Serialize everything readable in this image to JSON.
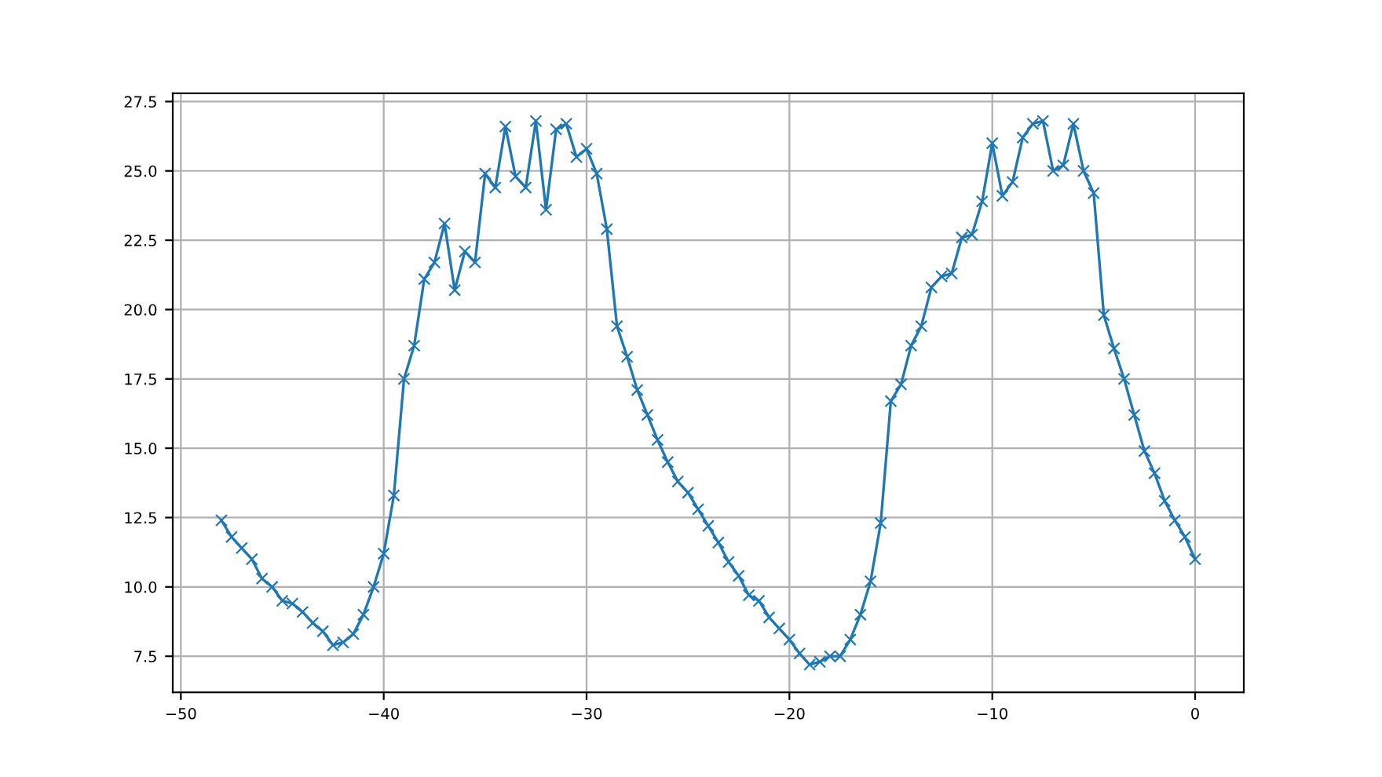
{
  "chart_data": {
    "type": "line",
    "marker": "cross",
    "grid": true,
    "color": "#1f77b4",
    "x": [
      -48,
      -47.5,
      -47,
      -46.5,
      -46,
      -45.5,
      -45,
      -44.5,
      -44,
      -43.5,
      -43,
      -42.5,
      -42,
      -41.5,
      -41,
      -40.5,
      -40,
      -39.5,
      -39,
      -38.5,
      -38,
      -37.5,
      -37,
      -36.5,
      -36,
      -35.5,
      -35,
      -34.5,
      -34,
      -33.5,
      -33,
      -32.5,
      -32,
      -31.5,
      -31,
      -30.5,
      -30,
      -29.5,
      -29,
      -28.5,
      -28,
      -27.5,
      -27,
      -26.5,
      -26,
      -25.5,
      -25,
      -24.5,
      -24,
      -23.5,
      -23,
      -22.5,
      -22,
      -21.5,
      -21,
      -20.5,
      -20,
      -19.5,
      -19,
      -18.5,
      -18,
      -17.5,
      -17,
      -16.5,
      -16,
      -15.5,
      -15,
      -14.5,
      -14,
      -13.5,
      -13,
      -12.5,
      -12,
      -11.5,
      -11,
      -10.5,
      -10,
      -9.5,
      -9,
      -8.5,
      -8,
      -7.5,
      -7,
      -6.5,
      -6,
      -5.5,
      -5,
      -4.5,
      -4,
      -3.5,
      -3,
      -2.5,
      -2,
      -1.5,
      -1,
      -0.5,
      0
    ],
    "values": [
      12.4,
      11.8,
      11.4,
      11.0,
      10.3,
      10.0,
      9.5,
      9.4,
      9.1,
      8.7,
      8.4,
      7.9,
      8.0,
      8.3,
      9.0,
      10.0,
      11.2,
      13.3,
      17.5,
      18.7,
      21.1,
      21.7,
      23.1,
      20.7,
      22.1,
      21.7,
      24.9,
      24.4,
      26.6,
      24.8,
      24.4,
      26.8,
      23.6,
      26.5,
      26.7,
      25.5,
      25.8,
      24.9,
      22.9,
      19.4,
      18.3,
      17.1,
      16.2,
      15.3,
      14.5,
      13.8,
      13.4,
      12.8,
      12.2,
      11.6,
      10.9,
      10.4,
      9.7,
      9.5,
      8.9,
      8.5,
      8.1,
      7.6,
      7.2,
      7.3,
      7.5,
      7.5,
      8.1,
      9.0,
      10.2,
      12.3,
      16.7,
      17.3,
      18.7,
      19.4,
      20.8,
      21.2,
      21.3,
      22.6,
      22.7,
      23.9,
      26.0,
      24.1,
      24.6,
      26.2,
      26.7,
      26.8,
      25.0,
      25.2,
      26.7,
      25.0,
      24.2,
      19.8,
      18.6,
      17.5,
      16.2,
      14.9,
      14.1,
      13.1,
      12.4,
      11.8,
      11.0
    ],
    "xlim": [
      -50.4,
      2.4
    ],
    "ylim": [
      6.2,
      27.8
    ],
    "xticks": [
      {
        "value": -50,
        "label": "−50"
      },
      {
        "value": -40,
        "label": "−40"
      },
      {
        "value": -30,
        "label": "−30"
      },
      {
        "value": -20,
        "label": "−20"
      },
      {
        "value": -10,
        "label": "−10"
      },
      0
    ],
    "yticks": [
      {
        "value": 7.5,
        "label": "7.5"
      },
      {
        "value": 10,
        "label": "10.0"
      },
      {
        "value": 12.5,
        "label": "12.5"
      },
      {
        "value": 15,
        "label": "15.0"
      },
      {
        "value": 17.5,
        "label": "17.5"
      },
      {
        "value": 20,
        "label": "20.0"
      },
      {
        "value": 22.5,
        "label": "22.5"
      },
      {
        "value": 25,
        "label": "25.0"
      },
      {
        "value": 27.5,
        "label": "27.5"
      }
    ]
  }
}
